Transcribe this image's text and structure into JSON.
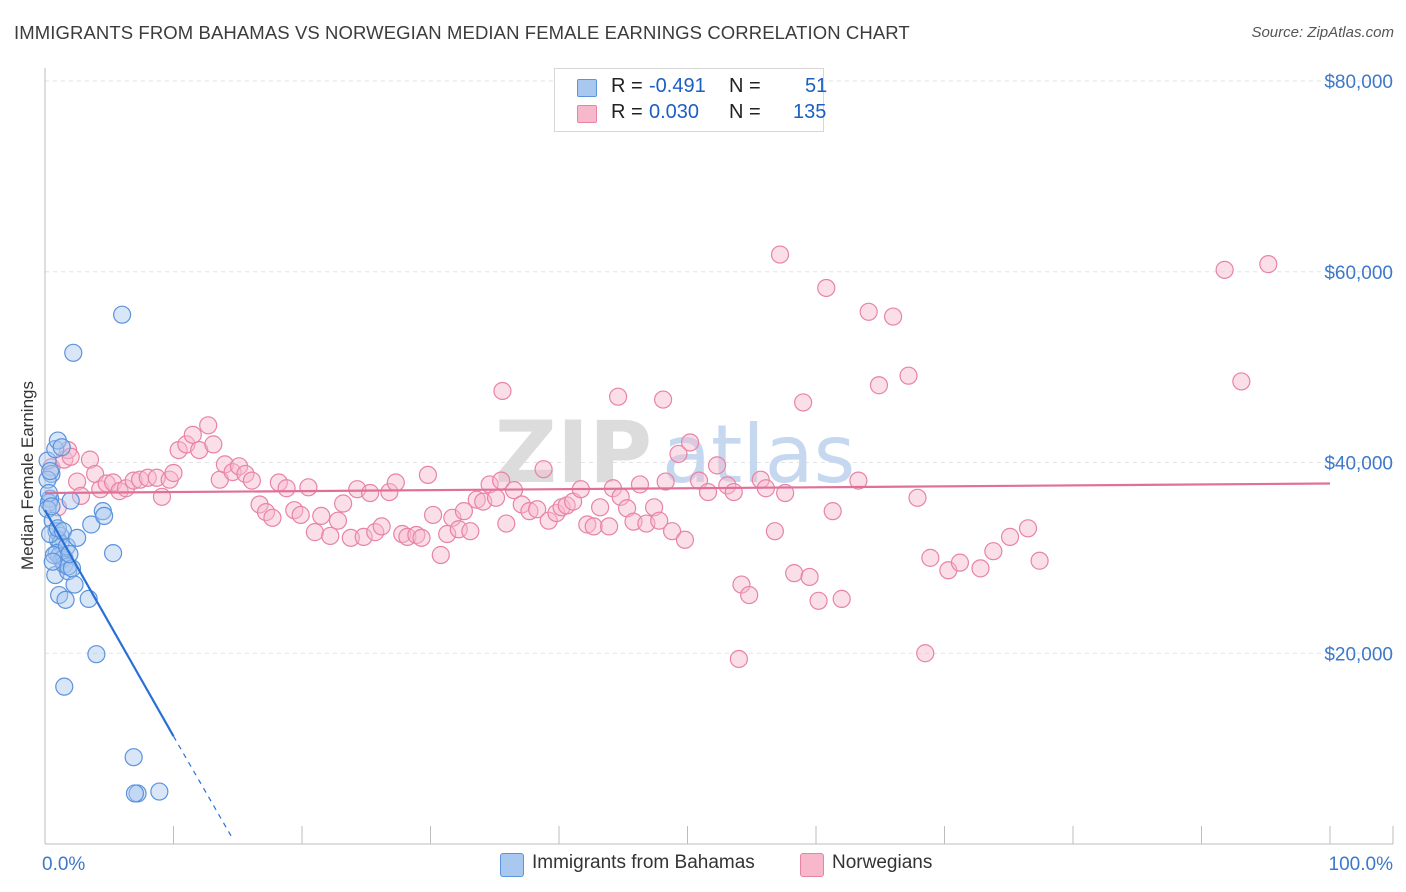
{
  "title": "IMMIGRANTS FROM BAHAMAS VS NORWEGIAN MEDIAN FEMALE EARNINGS CORRELATION CHART",
  "source": "Source: ZipAtlas.com",
  "watermark": {
    "zip": "ZIP",
    "atlas": "atlas"
  },
  "legend": {
    "r_label": "R =",
    "n_label": "N =",
    "series": [
      {
        "name": "Immigrants from Bahamas",
        "r": "-0.491",
        "n": "51",
        "fill": "#a9c8f0",
        "stroke": "#5b93dd"
      },
      {
        "name": "Norwegians",
        "r": "0.030",
        "n": "135",
        "fill": "#f7b8cc",
        "stroke": "#e883a6"
      }
    ]
  },
  "colors": {
    "blue_line": "#2a6fd6",
    "pink_line": "#e0709a",
    "axis_text_blue": "#3d78c9",
    "grid": "#e3e3e3"
  },
  "chart_data": {
    "type": "scatter",
    "title": "IMMIGRANTS FROM BAHAMAS VS NORWEGIAN MEDIAN FEMALE EARNINGS CORRELATION CHART",
    "xlabel": "",
    "ylabel": "Median Female Earnings",
    "xlim": [
      0,
      100
    ],
    "ylim": [
      0,
      80000
    ],
    "x_tick_labels": {
      "left": "0.0%",
      "right": "100.0%"
    },
    "y_ticks": [
      20000,
      40000,
      60000,
      80000
    ],
    "y_tick_labels": [
      "$20,000",
      "$40,000",
      "$60,000",
      "$80,000"
    ],
    "series": [
      {
        "name": "Immigrants from Bahamas",
        "r": -0.491,
        "n": 51,
        "trend": {
          "x": [
            0,
            10.0
          ],
          "y": [
            35000,
            11300
          ],
          "dashed_to": [
            14.5,
            800
          ]
        },
        "points": [
          [
            0.2,
            40200
          ],
          [
            0.4,
            36200
          ],
          [
            0.3,
            35800
          ],
          [
            0.5,
            38800
          ],
          [
            0.2,
            38200
          ],
          [
            0.4,
            39100
          ],
          [
            0.2,
            35100
          ],
          [
            0.6,
            33900
          ],
          [
            0.8,
            41400
          ],
          [
            1.0,
            42300
          ],
          [
            1.3,
            41600
          ],
          [
            0.9,
            32800
          ],
          [
            1.2,
            32300
          ],
          [
            1.0,
            31900
          ],
          [
            1.2,
            31500
          ],
          [
            0.9,
            30500
          ],
          [
            1.1,
            30200
          ],
          [
            1.3,
            29800
          ],
          [
            1.5,
            30000
          ],
          [
            0.8,
            28200
          ],
          [
            1.5,
            29300
          ],
          [
            1.8,
            28600
          ],
          [
            1.1,
            26100
          ],
          [
            1.6,
            25600
          ],
          [
            1.8,
            29100
          ],
          [
            2.1,
            28900
          ],
          [
            2.3,
            27200
          ],
          [
            2.0,
            36000
          ],
          [
            3.4,
            25700
          ],
          [
            3.6,
            33500
          ],
          [
            4.5,
            34900
          ],
          [
            4.6,
            34400
          ],
          [
            5.3,
            30500
          ],
          [
            4.0,
            19900
          ],
          [
            1.5,
            16500
          ],
          [
            6.9,
            9100
          ],
          [
            7.2,
            5300
          ],
          [
            7.0,
            5300
          ],
          [
            8.9,
            5500
          ],
          [
            2.2,
            51500
          ],
          [
            6.0,
            55500
          ],
          [
            0.3,
            36800
          ],
          [
            0.4,
            32500
          ],
          [
            0.7,
            30300
          ],
          [
            1.7,
            31200
          ],
          [
            1.0,
            33100
          ],
          [
            0.5,
            35400
          ],
          [
            1.4,
            32800
          ],
          [
            0.6,
            29600
          ],
          [
            1.9,
            30400
          ],
          [
            2.5,
            32100
          ]
        ]
      },
      {
        "name": "Norwegians",
        "r": 0.03,
        "n": 135,
        "trend": {
          "x": [
            0,
            100
          ],
          "y": [
            36800,
            37800
          ]
        },
        "points": [
          [
            0.5,
            39500
          ],
          [
            1.0,
            35300
          ],
          [
            1.5,
            40300
          ],
          [
            1.8,
            41300
          ],
          [
            2.0,
            40600
          ],
          [
            2.5,
            38000
          ],
          [
            2.8,
            36500
          ],
          [
            3.5,
            40300
          ],
          [
            3.9,
            38800
          ],
          [
            4.3,
            37200
          ],
          [
            4.8,
            37800
          ],
          [
            5.3,
            37900
          ],
          [
            5.8,
            37000
          ],
          [
            6.3,
            37300
          ],
          [
            6.9,
            38100
          ],
          [
            7.4,
            38200
          ],
          [
            8.0,
            38400
          ],
          [
            8.7,
            38400
          ],
          [
            9.1,
            36400
          ],
          [
            9.7,
            38200
          ],
          [
            10.0,
            38900
          ],
          [
            10.4,
            41300
          ],
          [
            11.0,
            41900
          ],
          [
            11.5,
            42900
          ],
          [
            12.0,
            41300
          ],
          [
            12.7,
            43900
          ],
          [
            13.1,
            41900
          ],
          [
            13.6,
            38200
          ],
          [
            14.0,
            39800
          ],
          [
            14.6,
            39000
          ],
          [
            15.1,
            39600
          ],
          [
            15.6,
            38800
          ],
          [
            16.1,
            38100
          ],
          [
            16.7,
            35600
          ],
          [
            17.2,
            34800
          ],
          [
            17.7,
            34200
          ],
          [
            18.2,
            37900
          ],
          [
            18.8,
            37300
          ],
          [
            19.4,
            35000
          ],
          [
            19.9,
            34500
          ],
          [
            20.5,
            37400
          ],
          [
            21.0,
            32700
          ],
          [
            21.5,
            34400
          ],
          [
            22.2,
            32300
          ],
          [
            22.8,
            33900
          ],
          [
            23.2,
            35700
          ],
          [
            23.8,
            32100
          ],
          [
            24.3,
            37200
          ],
          [
            24.8,
            32200
          ],
          [
            25.3,
            36800
          ],
          [
            25.7,
            32700
          ],
          [
            26.2,
            33300
          ],
          [
            26.8,
            36900
          ],
          [
            27.3,
            37900
          ],
          [
            27.8,
            32500
          ],
          [
            28.2,
            32200
          ],
          [
            28.9,
            32400
          ],
          [
            29.3,
            32100
          ],
          [
            29.8,
            38700
          ],
          [
            30.2,
            34500
          ],
          [
            30.8,
            30300
          ],
          [
            31.3,
            32500
          ],
          [
            31.7,
            34200
          ],
          [
            32.2,
            33000
          ],
          [
            32.6,
            34900
          ],
          [
            33.1,
            32800
          ],
          [
            33.6,
            36100
          ],
          [
            34.1,
            35900
          ],
          [
            34.6,
            37700
          ],
          [
            35.1,
            36300
          ],
          [
            35.5,
            38100
          ],
          [
            35.9,
            33600
          ],
          [
            36.5,
            37100
          ],
          [
            37.1,
            35600
          ],
          [
            37.7,
            34900
          ],
          [
            38.3,
            35100
          ],
          [
            38.8,
            39300
          ],
          [
            39.2,
            33900
          ],
          [
            39.8,
            34700
          ],
          [
            40.2,
            35300
          ],
          [
            40.6,
            35500
          ],
          [
            41.1,
            35900
          ],
          [
            41.7,
            37200
          ],
          [
            42.2,
            33500
          ],
          [
            42.7,
            33300
          ],
          [
            43.2,
            35300
          ],
          [
            43.9,
            33300
          ],
          [
            44.2,
            37300
          ],
          [
            44.8,
            36400
          ],
          [
            45.3,
            35200
          ],
          [
            45.8,
            33800
          ],
          [
            46.3,
            37700
          ],
          [
            46.8,
            33600
          ],
          [
            47.4,
            35300
          ],
          [
            47.8,
            33900
          ],
          [
            48.3,
            38000
          ],
          [
            48.8,
            32800
          ],
          [
            49.3,
            40900
          ],
          [
            49.8,
            31900
          ],
          [
            50.2,
            42100
          ],
          [
            50.9,
            38100
          ],
          [
            51.6,
            36900
          ],
          [
            52.3,
            39700
          ],
          [
            53.1,
            37600
          ],
          [
            53.6,
            36900
          ],
          [
            54.2,
            27200
          ],
          [
            54.8,
            26100
          ],
          [
            55.7,
            38200
          ],
          [
            56.1,
            37300
          ],
          [
            56.8,
            32800
          ],
          [
            57.6,
            36800
          ],
          [
            58.3,
            28400
          ],
          [
            59.0,
            46300
          ],
          [
            59.5,
            28000
          ],
          [
            60.2,
            25500
          ],
          [
            60.8,
            58300
          ],
          [
            61.3,
            34900
          ],
          [
            62.0,
            25700
          ],
          [
            63.3,
            38100
          ],
          [
            64.1,
            55800
          ],
          [
            64.9,
            48100
          ],
          [
            66.0,
            55300
          ],
          [
            67.2,
            49100
          ],
          [
            67.9,
            36300
          ],
          [
            68.5,
            20000
          ],
          [
            68.9,
            30000
          ],
          [
            70.3,
            28700
          ],
          [
            71.2,
            29500
          ],
          [
            72.8,
            28900
          ],
          [
            73.8,
            30700
          ],
          [
            75.1,
            32200
          ],
          [
            76.5,
            33100
          ],
          [
            77.4,
            29700
          ],
          [
            91.8,
            60200
          ],
          [
            93.1,
            48500
          ],
          [
            95.2,
            60800
          ],
          [
            48.1,
            46600
          ],
          [
            35.6,
            47500
          ],
          [
            44.6,
            46900
          ],
          [
            54.0,
            19400
          ],
          [
            57.2,
            61800
          ]
        ]
      }
    ]
  }
}
